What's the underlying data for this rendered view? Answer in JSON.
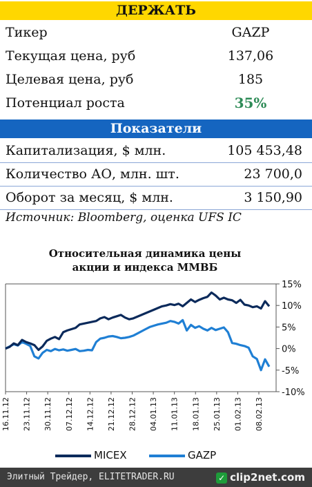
{
  "recommendation": "ДЕРЖАТЬ",
  "info": [
    {
      "label": "Тикер",
      "value": "GAZP"
    },
    {
      "label": "Текущая цена, руб",
      "value": "137,06"
    },
    {
      "label": "Целевая цена, руб",
      "value": "185"
    },
    {
      "label": "Потенциал роста",
      "value": "35%"
    }
  ],
  "metrics_title": "Показатели",
  "metrics": [
    {
      "label": "Капитализация, $ млн.",
      "value": "105 453,48"
    },
    {
      "label": "Количество АО, млн. шт.",
      "value": "23 700,0"
    },
    {
      "label": "Оборот за месяц, $ млн.",
      "value": "3 150,90"
    }
  ],
  "source": "Источник: Bloomberg, оценка UFS IC",
  "colors": {
    "hold": "#ffd700",
    "metrics_bar": "#1565c0",
    "positive": "#2e8b57",
    "micex": "#0b2a5b",
    "gazp": "#1f7fd4"
  },
  "footer": {
    "credit": "Элитный Трейдер, ELITETRADER.RU",
    "logo": "clip2net.com"
  },
  "chart_data": {
    "type": "line",
    "title": "Относительная динамика цены акции и индекса ММВБ",
    "title_lines": [
      "Относительная динамика цены",
      "акции и индекса ММВБ"
    ],
    "x_ticks": [
      "16.11.12",
      "23.11.12",
      "30.11.12",
      "07.12.12",
      "14.12.12",
      "21.12.12",
      "28.12.12",
      "04.01.13",
      "11.01.13",
      "18.01.13",
      "25.01.13",
      "01.02.13",
      "08.02.13"
    ],
    "ylim": [
      -10,
      15
    ],
    "y_ticks": [
      -10,
      -5,
      0,
      5,
      10,
      15
    ],
    "y_tick_labels": [
      "-10%",
      "-5%",
      "0%",
      "5%",
      "10%",
      "15%"
    ],
    "legend_position": "bottom",
    "series": [
      {
        "name": "MICEX",
        "values": [
          0,
          0.4,
          1.2,
          0.8,
          2,
          1.5,
          1.2,
          0.8,
          -0.3,
          0.5,
          1.8,
          2.3,
          2.7,
          2.2,
          3.8,
          4.2,
          4.5,
          4.8,
          5.6,
          5.8,
          6,
          6.2,
          6.4,
          7,
          7.3,
          6.8,
          7.2,
          7.5,
          7.8,
          7.2,
          6.8,
          7,
          7.4,
          7.8,
          8.2,
          8.6,
          9,
          9.4,
          9.8,
          10,
          10.3,
          10.1,
          10.4,
          9.8,
          10.6,
          11.4,
          10.8,
          11.3,
          11.7,
          12,
          13,
          12.3,
          11.4,
          11.8,
          11.4,
          11.2,
          10.6,
          11.3,
          10.2,
          10,
          9.6,
          9.8,
          9.3,
          11,
          9.8
        ]
      },
      {
        "name": "GAZP",
        "values": [
          0,
          0.5,
          1,
          0.7,
          1.5,
          1.1,
          0.6,
          -1.8,
          -2.3,
          -1,
          -0.3,
          -0.6,
          -0.1,
          -0.4,
          -0.2,
          -0.5,
          -0.3,
          -0.1,
          -0.6,
          -0.5,
          -0.3,
          -0.4,
          1.5,
          2.3,
          2.5,
          2.8,
          2.9,
          2.7,
          2.4,
          2.5,
          2.7,
          3,
          3.5,
          4,
          4.5,
          5,
          5.3,
          5.6,
          5.8,
          6,
          6.4,
          6.2,
          5.8,
          6.6,
          4.2,
          5.5,
          4.8,
          5.2,
          4.6,
          4.2,
          4.8,
          4.3,
          4.6,
          4.9,
          3.8,
          1.3,
          1.1,
          0.8,
          0.6,
          0.2,
          -1.8,
          -2.4,
          -5,
          -2.5,
          -4.2
        ]
      }
    ]
  }
}
